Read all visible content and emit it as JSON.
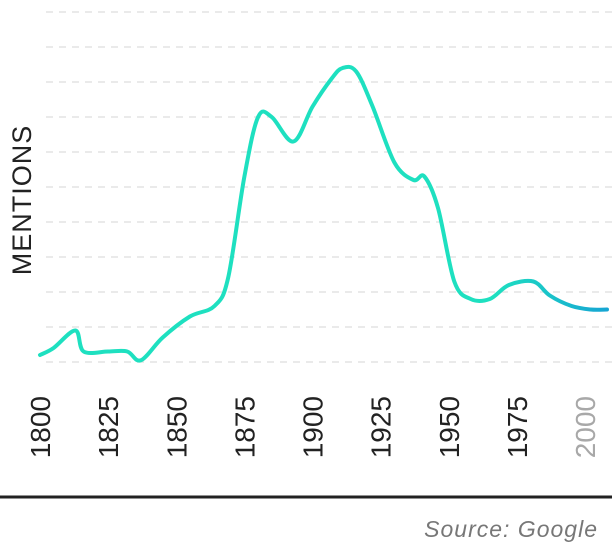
{
  "chart_data": {
    "type": "line",
    "ylabel": "MENTIONS",
    "xlabel": "",
    "x_ticks": [
      "1800",
      "1825",
      "1850",
      "1875",
      "1900",
      "1925",
      "1950",
      "1975",
      "2000"
    ],
    "xlim": [
      1800,
      2008
    ],
    "ylim": [
      0,
      10
    ],
    "grid": true,
    "series": [
      {
        "x": [
          1800,
          1805,
          1813,
          1816,
          1825,
          1832,
          1837,
          1845,
          1855,
          1864,
          1869,
          1875,
          1880,
          1885,
          1893,
          1900,
          1907,
          1911,
          1916,
          1922,
          1930,
          1937,
          1941,
          1946,
          1952,
          1958,
          1965,
          1972,
          1981,
          1987,
          1995,
          2002,
          2008
        ],
        "y": [
          0.2,
          0.4,
          0.9,
          0.3,
          0.3,
          0.3,
          0.05,
          0.7,
          1.3,
          1.6,
          2.4,
          5.3,
          7.0,
          7.0,
          6.3,
          7.3,
          8.1,
          8.4,
          8.3,
          7.3,
          5.7,
          5.2,
          5.3,
          4.4,
          2.3,
          1.8,
          1.8,
          2.2,
          2.3,
          1.9,
          1.6,
          1.5,
          1.5
        ],
        "color_start": "#1ee0c0",
        "color_end": "#16a5d3"
      }
    ],
    "source": "Source: Google",
    "axis_color": "#222222",
    "grid_color": "#dddddd",
    "faded_tick_color": "#a8a8a8"
  }
}
